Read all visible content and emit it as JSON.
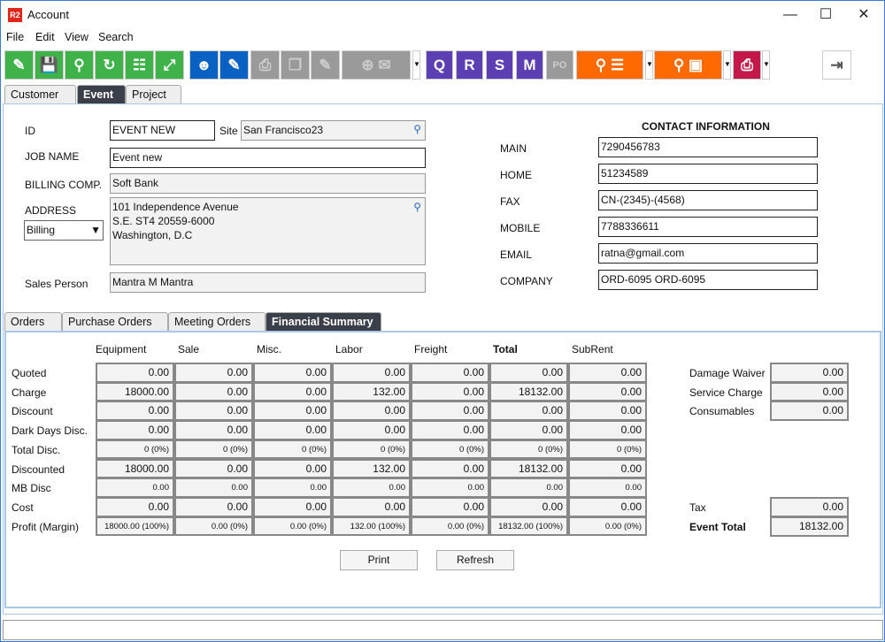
{
  "window": {
    "title": "Account",
    "logo": "R2"
  },
  "menu": [
    "File",
    "Edit",
    "View",
    "Search"
  ],
  "toolbar": {
    "colors": {
      "green": "#3fb24a",
      "blue": "#0a61c4",
      "purple": "#5b3fb3",
      "orange": "#ff6a00",
      "red": "#c4184a"
    },
    "doc_buttons": [
      "Q",
      "R",
      "S",
      "M",
      "PO"
    ]
  },
  "top_tabs": [
    "Customer",
    "Event",
    "Project"
  ],
  "form": {
    "id_label": "ID",
    "id_value": "EVENT NEW",
    "site_label": "Site",
    "site_value": "San Francisco23",
    "job_label": "JOB NAME",
    "job_value": "Event new",
    "billing_label": "BILLING COMP.",
    "billing_value": "Soft Bank",
    "address_label": "ADDRESS",
    "address_type": "Billing",
    "address_lines": [
      "101 Independence Avenue",
      "S.E. ST4 20559-6000",
      "Washington, D.C"
    ],
    "sales_label": "Sales Person",
    "sales_value": "Mantra M Mantra"
  },
  "contact": {
    "title": "CONTACT INFORMATION",
    "rows": [
      {
        "label": "MAIN",
        "value": "7290456783"
      },
      {
        "label": "HOME",
        "value": "51234589"
      },
      {
        "label": "FAX",
        "value": "CN-(2345)-(4568)"
      },
      {
        "label": "MOBILE",
        "value": "7788336611"
      },
      {
        "label": "EMAIL",
        "value": "ratna@gmail.com"
      },
      {
        "label": "COMPANY",
        "value": "ORD-6095 ORD-6095"
      }
    ]
  },
  "sub_tabs": [
    "Orders",
    "Purchase Orders",
    "Meeting Orders",
    "Financial Summary"
  ],
  "financial": {
    "columns": [
      "Equipment",
      "Sale",
      "Misc.",
      "Labor",
      "Freight",
      "Total",
      "SubRent"
    ],
    "rows": [
      {
        "label": "Quoted",
        "values": [
          "0.00",
          "0.00",
          "0.00",
          "0.00",
          "0.00",
          "0.00",
          "0.00"
        ]
      },
      {
        "label": "Charge",
        "values": [
          "18000.00",
          "0.00",
          "0.00",
          "132.00",
          "0.00",
          "18132.00",
          "0.00"
        ]
      },
      {
        "label": "Discount",
        "values": [
          "0.00",
          "0.00",
          "0.00",
          "0.00",
          "0.00",
          "0.00",
          "0.00"
        ]
      },
      {
        "label": "Dark Days Disc.",
        "values": [
          "0.00",
          "0.00",
          "0.00",
          "0.00",
          "0.00",
          "0.00",
          "0.00"
        ]
      },
      {
        "label": "Total Disc.",
        "small": true,
        "values": [
          "0 (0%)",
          "0 (0%)",
          "0 (0%)",
          "0 (0%)",
          "0 (0%)",
          "0 (0%)",
          "0 (0%)"
        ]
      },
      {
        "label": "Discounted",
        "values": [
          "18000.00",
          "0.00",
          "0.00",
          "132.00",
          "0.00",
          "18132.00",
          "0.00"
        ]
      },
      {
        "label": "MB Disc",
        "small": true,
        "values": [
          "0.00",
          "0.00",
          "0.00",
          "0.00",
          "0.00",
          "0.00",
          "0.00"
        ]
      },
      {
        "label": "Cost",
        "values": [
          "0.00",
          "0.00",
          "0.00",
          "0.00",
          "0.00",
          "0.00",
          "0.00"
        ]
      },
      {
        "label": "Profit (Margin)",
        "small": true,
        "values": [
          "18000.00 (100%)",
          "0.00 (0%)",
          "0.00 (0%)",
          "132.00 (100%)",
          "0.00 (0%)",
          "18132.00 (100%)",
          "0.00 (0%)"
        ]
      }
    ],
    "extras": [
      {
        "label": "Damage Waiver",
        "value": "0.00"
      },
      {
        "label": "Service Charge",
        "value": "0.00"
      },
      {
        "label": "Consumables",
        "value": "0.00"
      }
    ],
    "tax": {
      "label": "Tax",
      "value": "0.00"
    },
    "event_total": {
      "label": "Event Total",
      "value": "18132.00"
    },
    "print_label": "Print",
    "refresh_label": "Refresh"
  }
}
